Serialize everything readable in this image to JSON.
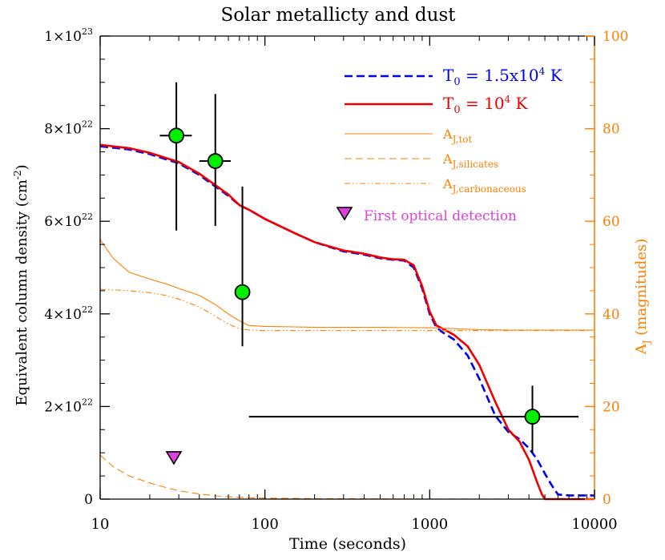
{
  "chart_data": {
    "type": "line",
    "title": "Solar metallicty and dust",
    "xlabel": "Time (seconds)",
    "ylabel_left": "Equivalent column density (cm",
    "ylabel_left_sup": "-2",
    "ylabel_left_close": ")",
    "ylabel_right_main": "A",
    "ylabel_right_sub": "J",
    "ylabel_right_rest": " (magnitudes)",
    "x_scale": "log",
    "xlim": [
      10,
      10000
    ],
    "ylim_left": [
      0,
      1e+23
    ],
    "ylim_right": [
      0,
      100
    ],
    "x_tick_labels": [
      "10",
      "100",
      "1000",
      "10000"
    ],
    "y_tick_labels_left": [
      {
        "mant": "0",
        "exp": ""
      },
      {
        "mant": "2×10",
        "exp": "22"
      },
      {
        "mant": "4×10",
        "exp": "22"
      },
      {
        "mant": "6×10",
        "exp": "22"
      },
      {
        "mant": "8×10",
        "exp": "22"
      },
      {
        "mant": "1×10",
        "exp": "23"
      }
    ],
    "y_tick_labels_right": [
      "0",
      "20",
      "40",
      "60",
      "80",
      "100"
    ],
    "colors": {
      "blue": "#0000ee",
      "red": "#ee0000",
      "orange": "#ff7f00",
      "magenta": "#e040e0",
      "green": "#00ee00",
      "black": "#000000"
    },
    "legend_position": "top-right",
    "legend": [
      {
        "key": "blue",
        "text": "T",
        "sub": "0",
        "mid": " = 1.5x10",
        "sup": "4",
        "tail": " K"
      },
      {
        "key": "red",
        "text": "T",
        "sub": "0",
        "mid": " = 10",
        "sup": "4",
        "tail": " K"
      },
      {
        "key": "a_tot",
        "text": "A",
        "sub": "J,tot"
      },
      {
        "key": "a_sil",
        "text": "A",
        "sub": "J,silicates"
      },
      {
        "key": "a_carb",
        "text": "A",
        "sub": "J,carbonaceous"
      },
      {
        "key": "optical",
        "text": "First optical detection"
      }
    ],
    "series": [
      {
        "axis": "left",
        "style": "dashed",
        "color": "#0000ee",
        "x": [
          10,
          15,
          20,
          30,
          40,
          50,
          60,
          70,
          80,
          100,
          150,
          200,
          300,
          400,
          500,
          600,
          700,
          800,
          900,
          1000,
          1100,
          1200,
          1400,
          1700,
          2000,
          2500,
          3000,
          3500,
          4000,
          4500,
          5000,
          5500,
          6000,
          7000,
          8000,
          10000
        ],
        "y": [
          7.62e+22,
          7.55e+22,
          7.45e+22,
          7.25e+22,
          7e+22,
          6.75e+22,
          6.55e+22,
          6.35e+22,
          6.25e+22,
          6.05e+22,
          5.75e+22,
          5.55e+22,
          5.35e+22,
          5.28e+22,
          5.2e+22,
          5.17e+22,
          5.15e+22,
          5e+22,
          4.55e+22,
          4e+22,
          3.7e+22,
          3.6e+22,
          3.45e+22,
          3.1e+22,
          2.6e+22,
          1.8e+22,
          1.45e+22,
          1.3e+22,
          1.1e+22,
          8.5e+21,
          5.5e+21,
          3e+21,
          1e+21,
          8e+20,
          8e+20,
          8e+20
        ]
      },
      {
        "axis": "left",
        "style": "solid",
        "color": "#ee0000",
        "x": [
          10,
          15,
          20,
          30,
          40,
          50,
          60,
          70,
          80,
          100,
          150,
          200,
          300,
          400,
          500,
          600,
          700,
          800,
          900,
          1000,
          1100,
          1200,
          1400,
          1700,
          2000,
          2500,
          3000,
          3500,
          4000,
          4500,
          4800,
          5000,
          10000
        ],
        "y": [
          7.65e+22,
          7.58e+22,
          7.48e+22,
          7.28e+22,
          7.03e+22,
          6.78e+22,
          6.58e+22,
          6.35e+22,
          6.25e+22,
          6.05e+22,
          5.75e+22,
          5.55e+22,
          5.37e+22,
          5.3e+22,
          5.22e+22,
          5.18e+22,
          5.17e+22,
          5.05e+22,
          4.6e+22,
          4.05e+22,
          3.75e+22,
          3.68e+22,
          3.55e+22,
          3.3e+22,
          2.9e+22,
          2.1e+22,
          1.5e+22,
          1.25e+22,
          8.5e+21,
          3.5e+21,
          1e+21,
          0.0,
          0.0
        ]
      },
      {
        "axis": "right",
        "style": "solid",
        "color": "#ff7f00",
        "x": [
          10,
          12,
          15,
          20,
          25,
          30,
          40,
          50,
          60,
          70,
          80,
          100,
          150,
          200,
          300,
          500,
          1000,
          2000,
          3000,
          5000,
          10000
        ],
        "y": [
          56,
          52,
          49,
          47.5,
          46.5,
          45.5,
          44,
          42,
          40,
          38.5,
          37.5,
          37.3,
          37.2,
          37.1,
          37.1,
          37.1,
          37.0,
          36.6,
          36.5,
          36.5,
          36.5
        ]
      },
      {
        "axis": "right",
        "style": "dashed",
        "color": "#ff7f00",
        "x": [
          10,
          12,
          15,
          20,
          25,
          30,
          40,
          50,
          60,
          70,
          80,
          100,
          150,
          200,
          300,
          500,
          1000,
          10000
        ],
        "y": [
          9.5,
          7,
          5,
          3.5,
          2.5,
          1.8,
          1.1,
          0.7,
          0.5,
          0.4,
          0.3,
          0.2,
          0.15,
          0.1,
          0.08,
          0.05,
          0.02,
          0.0
        ]
      },
      {
        "axis": "right",
        "style": "dashdotdot",
        "color": "#ff7f00",
        "x": [
          10,
          12,
          15,
          20,
          25,
          30,
          40,
          50,
          60,
          70,
          80,
          100,
          150,
          200,
          300,
          500,
          1000,
          2000,
          3000,
          5000,
          10000
        ],
        "y": [
          45.3,
          45.2,
          45.0,
          44.6,
          44.0,
          43.2,
          41.5,
          39.5,
          37.8,
          36.8,
          36.5,
          36.4,
          36.4,
          36.4,
          36.4,
          36.4,
          36.4,
          36.4,
          36.4,
          36.4,
          36.4
        ]
      }
    ],
    "points": [
      {
        "x": 29,
        "y": 7.85e+22,
        "xlo": 23,
        "xhi": 36,
        "ylo": 5.8e+22,
        "yhi": 9e+22
      },
      {
        "x": 50,
        "y": 7.3e+22,
        "xlo": 40,
        "xhi": 62,
        "ylo": 5.9e+22,
        "yhi": 8.75e+22
      },
      {
        "x": 73,
        "y": 4.47e+22,
        "xlo": 66,
        "xhi": 80,
        "ylo": 3.3e+22,
        "yhi": 6.75e+22
      },
      {
        "x": 4200,
        "y": 1.78e+22,
        "xlo": 80,
        "xhi": 8000,
        "ylo": 1e+22,
        "yhi": 2.45e+22
      }
    ],
    "optical_detection": {
      "x": 28,
      "y": 9e+21
    }
  }
}
